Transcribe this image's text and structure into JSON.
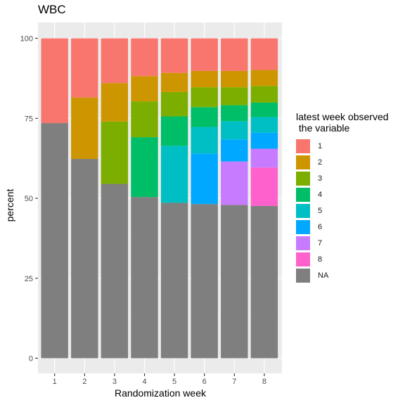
{
  "chart_data": {
    "type": "bar",
    "stacked": true,
    "title": "WBC",
    "xlabel": "Randomization week",
    "ylabel": "percent",
    "ylim": [
      0,
      100
    ],
    "yticks": [
      0,
      25,
      50,
      75,
      100
    ],
    "categories": [
      "1",
      "2",
      "3",
      "4",
      "5",
      "6",
      "7",
      "8"
    ],
    "legend_title": "latest week observed\n the variable",
    "legend_position": "right",
    "grid": true,
    "series": [
      {
        "name": "1",
        "color": "#F8766D",
        "values": [
          26.5,
          18.5,
          14.0,
          11.8,
          10.8,
          10.2,
          10.2,
          9.9
        ]
      },
      {
        "name": "2",
        "color": "#CD9600",
        "values": [
          0,
          19.2,
          12.0,
          7.9,
          6.0,
          5.1,
          5.1,
          5.0
        ]
      },
      {
        "name": "3",
        "color": "#7CAE00",
        "values": [
          0,
          0,
          19.5,
          11.2,
          7.6,
          6.2,
          5.6,
          5.2
        ]
      },
      {
        "name": "4",
        "color": "#00BE67",
        "values": [
          0,
          0,
          0,
          18.7,
          9.2,
          6.2,
          5.0,
          4.5
        ]
      },
      {
        "name": "5",
        "color": "#00BFC4",
        "values": [
          0,
          0,
          0,
          0,
          17.8,
          8.3,
          5.7,
          4.9
        ]
      },
      {
        "name": "6",
        "color": "#00A9FF",
        "values": [
          0,
          0,
          0,
          0,
          0,
          15.8,
          6.9,
          5.0
        ]
      },
      {
        "name": "7",
        "color": "#C77CFF",
        "values": [
          0,
          0,
          0,
          0,
          0,
          0,
          13.6,
          5.9
        ]
      },
      {
        "name": "8",
        "color": "#FF61CC",
        "values": [
          0,
          0,
          0,
          0,
          0,
          0,
          0,
          12.0
        ]
      },
      {
        "name": "NA",
        "color": "#7F7F7F",
        "values": [
          73.5,
          62.3,
          54.5,
          50.4,
          48.6,
          48.2,
          47.9,
          47.6
        ]
      }
    ]
  }
}
